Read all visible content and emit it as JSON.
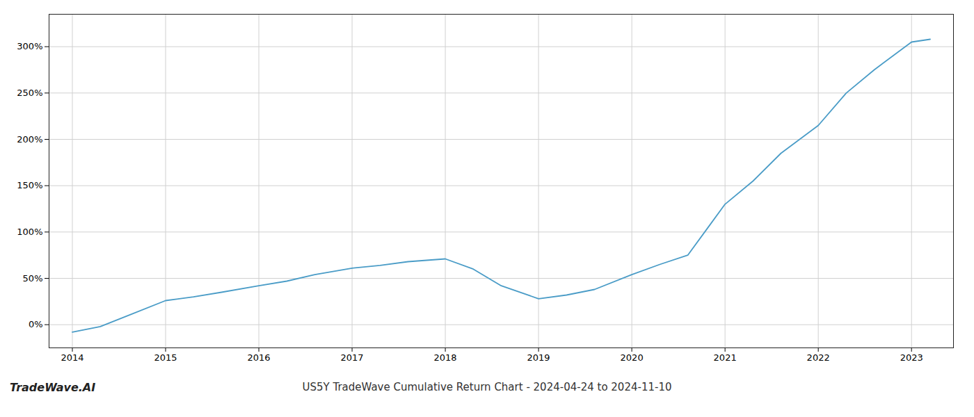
{
  "chart_data": {
    "type": "line",
    "title": "US5Y TradeWave Cumulative Return Chart - 2024-04-24 to 2024-11-10",
    "annotations": [
      "TradeWave.AI"
    ],
    "x": [
      2014.0,
      2014.3,
      2014.6,
      2015.0,
      2015.3,
      2015.6,
      2016.0,
      2016.3,
      2016.6,
      2017.0,
      2017.3,
      2017.6,
      2018.0,
      2018.3,
      2018.6,
      2019.0,
      2019.3,
      2019.6,
      2020.0,
      2020.3,
      2020.6,
      2021.0,
      2021.3,
      2021.6,
      2022.0,
      2022.3,
      2022.6,
      2023.0,
      2023.2
    ],
    "values": [
      -8,
      -2,
      10,
      26,
      30,
      35,
      42,
      47,
      54,
      61,
      64,
      68,
      71,
      60,
      42,
      28,
      32,
      38,
      54,
      65,
      75,
      130,
      155,
      185,
      215,
      250,
      275,
      305,
      308
    ],
    "color": "#4a9cc7",
    "xlim": [
      2013.75,
      2023.45
    ],
    "xticks": [
      2014,
      2015,
      2016,
      2017,
      2018,
      2019,
      2020,
      2021,
      2022,
      2023
    ],
    "ylim": [
      -25,
      335
    ],
    "yticks": [
      {
        "value": 0,
        "label": "0%"
      },
      {
        "value": 50,
        "label": "50%"
      },
      {
        "value": 100,
        "label": "100%"
      },
      {
        "value": 150,
        "label": "150%"
      },
      {
        "value": 200,
        "label": "200%"
      },
      {
        "value": 250,
        "label": "250%"
      },
      {
        "value": 300,
        "label": "300%"
      }
    ],
    "grid": true
  }
}
